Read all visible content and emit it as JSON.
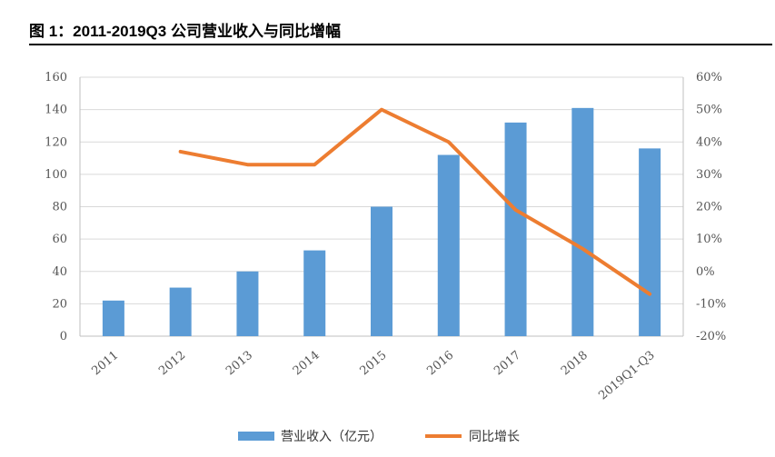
{
  "title": "图 1：2011-2019Q3 公司营业收入与同比增幅",
  "chart_data": {
    "type": "bar+line",
    "categories": [
      "2011",
      "2012",
      "2013",
      "2014",
      "2015",
      "2016",
      "2017",
      "2018",
      "2019Q1-Q3"
    ],
    "series": [
      {
        "name": "营业收入（亿元）",
        "type": "bar",
        "axis": "left",
        "color": "#5B9BD5",
        "values": [
          22,
          30,
          40,
          53,
          80,
          112,
          132,
          141,
          116
        ]
      },
      {
        "name": "同比增长",
        "type": "line",
        "axis": "right",
        "color": "#ED7D31",
        "values": [
          null,
          37,
          33,
          33,
          50,
          40,
          19,
          7,
          -7
        ]
      }
    ],
    "left_axis": {
      "min": 0,
      "max": 160,
      "step": 20,
      "tick_labels": [
        "0",
        "20",
        "40",
        "60",
        "80",
        "100",
        "120",
        "140",
        "160"
      ]
    },
    "right_axis": {
      "min": -20,
      "max": 60,
      "step": 10,
      "tick_labels": [
        "-20%",
        "-10%",
        "0%",
        "10%",
        "20%",
        "30%",
        "40%",
        "50%",
        "60%"
      ]
    },
    "legend": [
      "营业收入（亿元）",
      "同比增长"
    ],
    "legend_position": "bottom"
  }
}
